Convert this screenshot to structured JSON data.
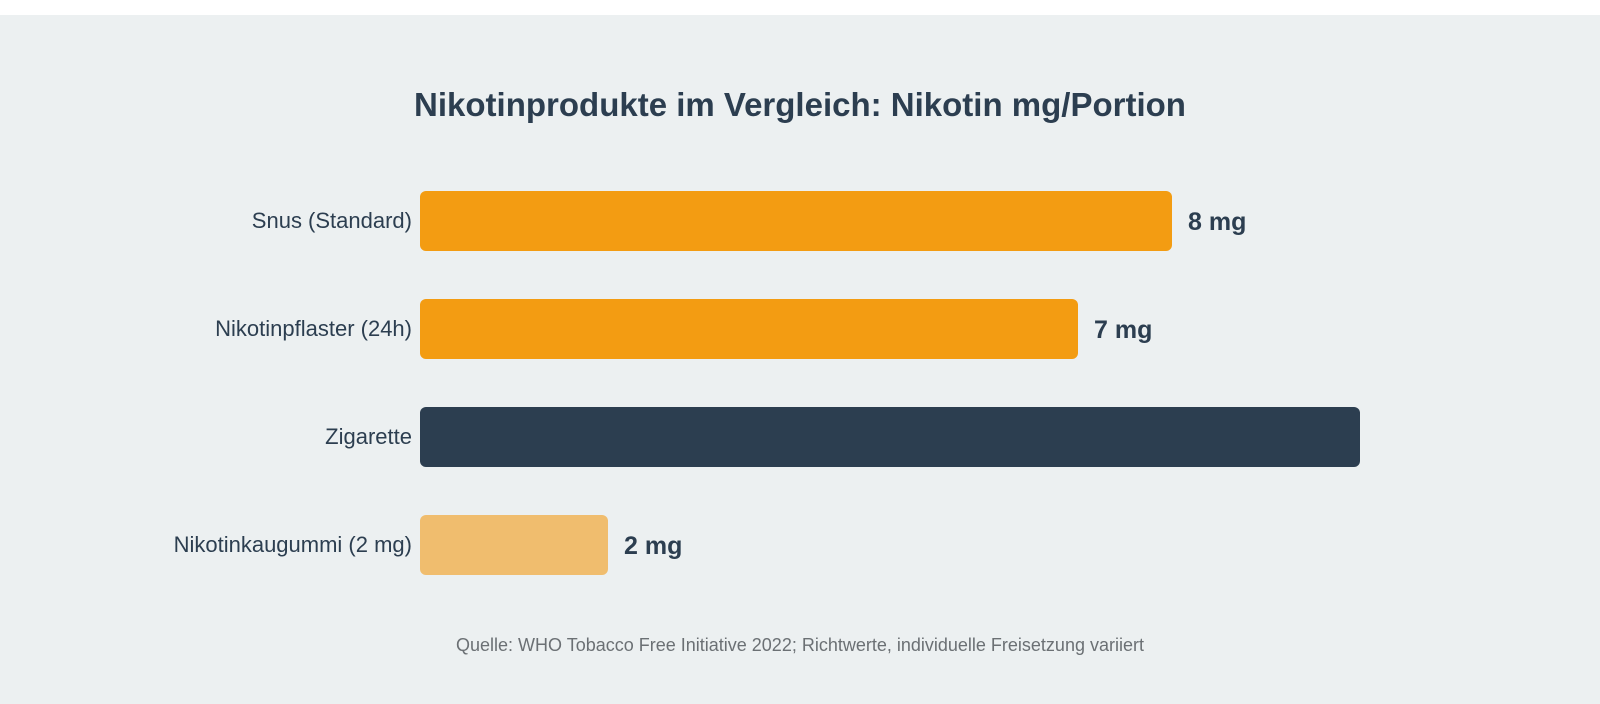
{
  "chart_data": {
    "type": "bar",
    "orientation": "horizontal",
    "title": "Nikotinprodukte im Vergleich: Nikotin mg/Portion",
    "categories": [
      "Snus (Standard)",
      "Nikotinpflaster (24h)",
      "Zigarette",
      "Nikotinkaugummi (2 mg)"
    ],
    "values": [
      8,
      7,
      10,
      2
    ],
    "value_labels": [
      "8 mg",
      "7 mg",
      "",
      "2 mg"
    ],
    "bar_colors": [
      "#f39c12",
      "#f39c12",
      "#2c3e50",
      "#f0bd6e"
    ],
    "xlim": [
      0,
      10
    ],
    "grid": false,
    "source": "Quelle: WHO Tobacco Free Initiative 2022; Richtwerte, individuelle Freisetzung variiert"
  }
}
